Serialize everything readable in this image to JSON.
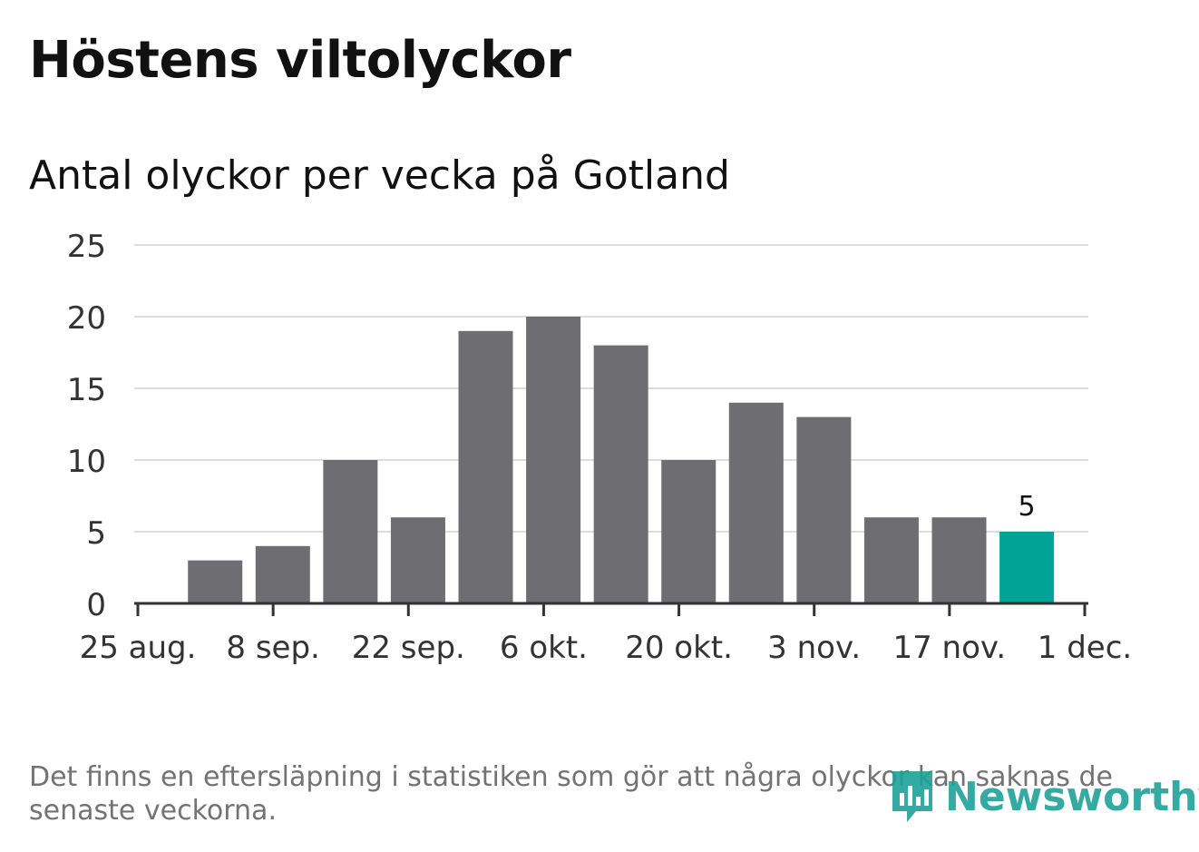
{
  "header": {
    "title": "Höstens viltolyckor",
    "subtitle": "Antal olyckor per vecka på Gotland"
  },
  "footer": {
    "note": "Det finns en eftersläpning i statistiken som gör att några olyckor kan saknas de senaste veckorna.",
    "brand": "Newsworthy"
  },
  "colors": {
    "bar": "#6e6d72",
    "highlight": "#00a396",
    "grid": "#dddddd",
    "axis": "#333333"
  },
  "chart_data": {
    "type": "bar",
    "title": "Antal olyckor per vecka på Gotland",
    "xlabel": "",
    "ylabel": "",
    "x_axis": "date",
    "categories": [
      "2019-09-02",
      "2019-09-09",
      "2019-09-16",
      "2019-09-23",
      "2019-09-30",
      "2019-10-07",
      "2019-10-14",
      "2019-10-21",
      "2019-10-28",
      "2019-11-04",
      "2019-11-11",
      "2019-11-18",
      "2019-11-25"
    ],
    "values": [
      3,
      4,
      10,
      6,
      19,
      20,
      18,
      10,
      14,
      13,
      6,
      6,
      5
    ],
    "highlight_index": 12,
    "data_labels": [
      {
        "index": 12,
        "text": "5"
      }
    ],
    "ylim": [
      0,
      25
    ],
    "yticks": [
      0,
      5,
      10,
      15,
      20,
      25
    ],
    "xlim": [
      "2019-08-25",
      "2019-12-01"
    ],
    "xticks": [
      {
        "date": "2019-08-25",
        "label": "25 aug."
      },
      {
        "date": "2019-09-08",
        "label": "8 sep."
      },
      {
        "date": "2019-09-22",
        "label": "22 sep."
      },
      {
        "date": "2019-10-06",
        "label": "6 okt."
      },
      {
        "date": "2019-10-20",
        "label": "20 okt."
      },
      {
        "date": "2019-11-03",
        "label": "3 nov."
      },
      {
        "date": "2019-11-17",
        "label": "17 nov."
      },
      {
        "date": "2019-12-01",
        "label": "1 dec."
      }
    ],
    "grid": true,
    "legend": "none"
  }
}
